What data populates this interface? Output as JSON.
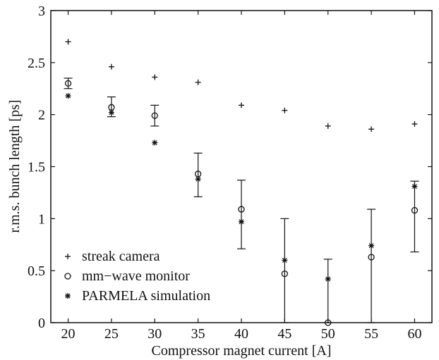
{
  "chart_data": {
    "type": "scatter",
    "xlabel": "Compressor magnet current [A]",
    "ylabel": "r.m.s. bunch length [ps]",
    "xlim": [
      18,
      62
    ],
    "ylim": [
      0,
      3
    ],
    "xticks": [
      20,
      25,
      30,
      35,
      40,
      45,
      50,
      55,
      60
    ],
    "xtick_labels": [
      "20",
      "25",
      "30",
      "35",
      "40",
      "45",
      "50",
      "55",
      "60"
    ],
    "yticks": [
      0,
      0.5,
      1,
      1.5,
      2,
      2.5,
      3
    ],
    "ytick_labels": [
      "0",
      "0.5",
      "1",
      "1.5",
      "2",
      "2.5",
      "3"
    ],
    "grid": false,
    "legend_position": "bottom-left",
    "series": [
      {
        "name": "streak camera",
        "marker": "plus",
        "x": [
          20,
          25,
          30,
          35,
          40,
          45,
          50,
          55,
          60
        ],
        "y": [
          2.7,
          2.46,
          2.36,
          2.31,
          2.09,
          2.04,
          1.89,
          1.86,
          1.91
        ]
      },
      {
        "name": "mm−wave monitor",
        "marker": "circle",
        "x": [
          20,
          25,
          30,
          35,
          40,
          45,
          50,
          55,
          60
        ],
        "y": [
          2.3,
          2.07,
          1.99,
          1.43,
          1.09,
          0.47,
          0.0,
          0.63,
          1.08
        ],
        "error_low": [
          2.25,
          1.98,
          1.89,
          1.21,
          0.71,
          0.0,
          0.0,
          0.0,
          0.68
        ],
        "error_high": [
          2.35,
          2.17,
          2.09,
          1.63,
          1.37,
          1.0,
          0.61,
          1.09,
          1.36
        ]
      },
      {
        "name": "PARMELA simulation",
        "marker": "asterisk",
        "x": [
          20,
          25,
          30,
          35,
          40,
          45,
          50,
          55,
          60
        ],
        "y": [
          2.18,
          2.02,
          1.73,
          1.38,
          0.97,
          0.6,
          0.42,
          0.74,
          1.31
        ]
      }
    ]
  }
}
